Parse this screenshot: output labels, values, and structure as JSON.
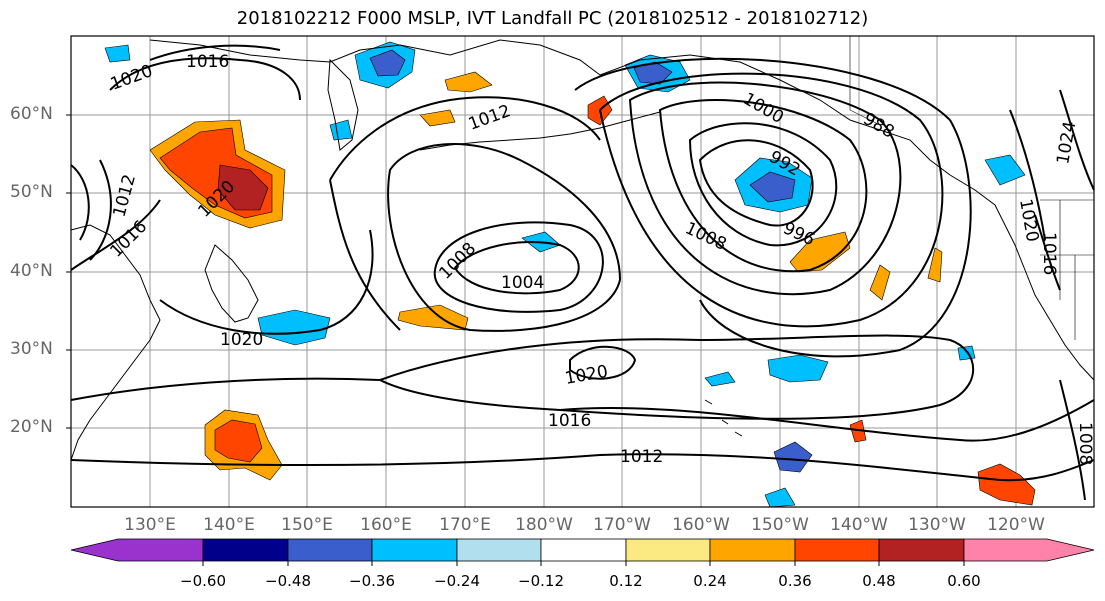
{
  "title": "2018102212 F000 MSLP, IVT Landfall PC (2018102512 - 2018102712)",
  "lat_labels": [
    "60°N",
    "50°N",
    "40°N",
    "30°N",
    "20°N"
  ],
  "lon_labels": [
    "130°E",
    "140°E",
    "150°E",
    "160°E",
    "170°E",
    "180°W",
    "170°W",
    "160°W",
    "150°W",
    "140°W",
    "130°W",
    "120°W"
  ],
  "isobar_labels": [
    "1020",
    "1016",
    "1012",
    "1016",
    "1012",
    "1020",
    "1000",
    "988",
    "992",
    "996",
    "1008",
    "1008",
    "1004",
    "1020",
    "1020",
    "1016",
    "1012",
    "1024",
    "1020",
    "1016",
    "1008"
  ],
  "colorbar": {
    "ticks": [
      "−0.60",
      "−0.48",
      "−0.36",
      "−0.24",
      "−0.12",
      "0.12",
      "0.24",
      "0.36",
      "0.48",
      "0.60"
    ],
    "colors": [
      "#9a32cd",
      "#00008b",
      "#3a5fcd",
      "#00bfff",
      "#b2dfee",
      "#ffffff",
      "#fbe982",
      "#ffa500",
      "#ff4500",
      "#b22222",
      "#ff82ab"
    ]
  },
  "colors": {
    "contour": "#000000",
    "grid": "#999999",
    "coast": "#000000"
  }
}
